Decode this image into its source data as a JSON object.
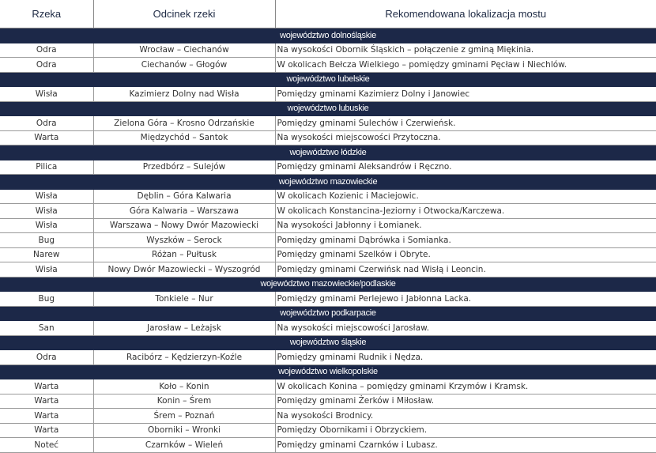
{
  "headers": [
    "Rzeka",
    "Odcinek rzeki",
    "Rekomendowana lokalizacja mostu"
  ],
  "sections": [
    {
      "name": "województwo dolnośląskie",
      "rows": [
        [
          "Odra",
          "Wrocław – Ciechanów",
          "Na wysokości Obornik Śląskich – połączenie z gminą Miękinia."
        ],
        [
          "Odra",
          "Ciechanów – Głogów",
          "W okolicach Bełcza Wielkiego – pomiędzy gminami Pęcław i Niechlów."
        ]
      ]
    },
    {
      "name": "województwo lubelskie",
      "rows": [
        [
          "Wisła",
          "Kazimierz Dolny nad Wisła",
          "Pomiędzy gminami Kazimierz Dolny i Janowiec"
        ]
      ]
    },
    {
      "name": "województwo lubuskie",
      "rows": [
        [
          "Odra",
          "Zielona Góra – Krosno Odrzańskie",
          "Pomiędzy gminami Sulechów i Czerwieńsk."
        ],
        [
          "Warta",
          "Międzychód – Santok",
          "Na wysokości miejscowości Przytoczna."
        ]
      ]
    },
    {
      "name": "województwo łódzkie",
      "rows": [
        [
          "Pilica",
          "Przedbórz – Sulejów",
          "Pomiędzy gminami Aleksandrów i Ręczno."
        ]
      ]
    },
    {
      "name": "województwo mazowieckie",
      "rows": [
        [
          "Wisła",
          "Dęblin – Góra Kalwaria",
          "W okolicach Kozienic i Maciejowic."
        ],
        [
          "Wisła",
          "Góra Kalwaria – Warszawa",
          "W okolicach Konstancina-Jeziorny i Otwocka/Karczewa."
        ],
        [
          "Wisła",
          "Warszawa – Nowy Dwór Mazowiecki",
          "Na wysokości Jabłonny i Łomianek."
        ],
        [
          "Bug",
          "Wyszków – Serock",
          "Pomiędzy gminami Dąbrówka i Somianka."
        ],
        [
          "Narew",
          "Różan – Pułtusk",
          "Pomiędzy gminami Szelków i Obryte."
        ],
        [
          "Wisła",
          "Nowy Dwór Mazowiecki – Wyszogród",
          "Pomiędzy gminami Czerwińsk nad Wisłą i Leoncin."
        ]
      ]
    },
    {
      "name": "województwo mazowieckie/podlaskie",
      "rows": [
        [
          "Bug",
          "Tonkiele – Nur",
          "Pomiędzy gminami Perlejewo i Jabłonna Lacka."
        ]
      ]
    },
    {
      "name": "województwo podkarpacie",
      "rows": [
        [
          "San",
          "Jarosław – Leżajsk",
          "Na wysokości miejscowości Jarosław."
        ]
      ]
    },
    {
      "name": "województwo śląskie",
      "rows": [
        [
          "Odra",
          "Racibórz – Kędzierzyn-Koźle",
          "Pomiędzy gminami Rudnik i Nędza."
        ]
      ]
    },
    {
      "name": "województwo wielkopolskie",
      "rows": [
        [
          "Warta",
          "Koło – Konin",
          "W okolicach Konina – pomiędzy gminami Krzymów i Kramsk."
        ],
        [
          "Warta",
          "Konin – Śrem",
          "Pomiędzy gminami Żerków i Miłosław."
        ],
        [
          "Warta",
          "Śrem – Poznań",
          "Na wysokości Brodnicy."
        ],
        [
          "Warta",
          "Oborniki – Wronki",
          "Pomiędzy Obornikami i Obrzyckiem."
        ],
        [
          "Noteć",
          "Czarnków – Wieleń",
          "Pomiędzy gminami Czarnków i Lubasz."
        ]
      ]
    }
  ]
}
